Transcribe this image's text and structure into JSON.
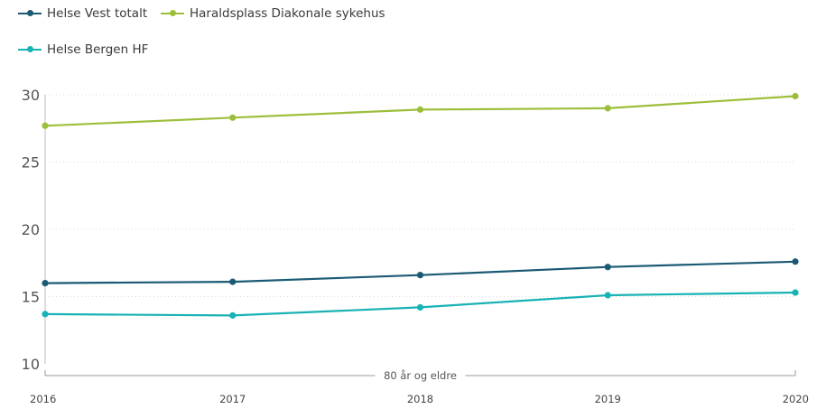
{
  "chart_data": {
    "type": "line",
    "title": "",
    "xlabel": "",
    "ylabel": "",
    "group_label": "80 år og eldre",
    "categories": [
      "2016",
      "2017",
      "2018",
      "2019",
      "2020"
    ],
    "y_ticks": [
      10,
      15,
      20,
      25,
      30
    ],
    "ylim": [
      10,
      30
    ],
    "grid": true,
    "legend_position": "top-left",
    "series": [
      {
        "name": "Helse Vest totalt",
        "color": "#1b5a74",
        "values": [
          16.0,
          16.1,
          16.6,
          17.2,
          17.6
        ]
      },
      {
        "name": "Haraldsplass Diakonale sykehus",
        "color": "#9cbf3b",
        "values": [
          27.7,
          28.3,
          28.9,
          29.0,
          29.9
        ]
      },
      {
        "name": "Helse Bergen HF",
        "color": "#19b2b5",
        "values": [
          13.7,
          13.6,
          14.2,
          15.1,
          15.3
        ]
      }
    ]
  }
}
